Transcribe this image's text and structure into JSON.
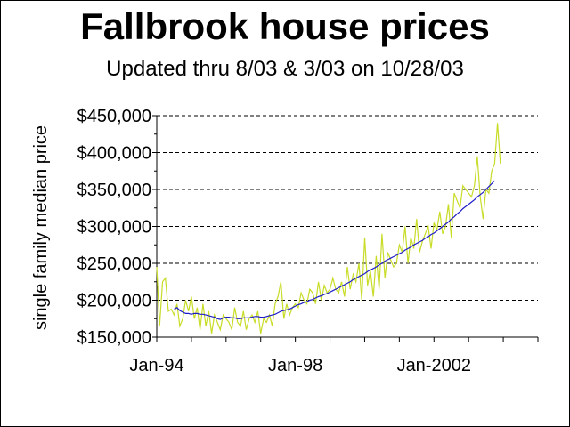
{
  "chart_data": {
    "type": "line",
    "title": "Fallbrook house prices",
    "subtitle": "Updated thru 8/03 & 3/03 on 10/28/03",
    "ylabel": "single family median price",
    "xlabel": "",
    "ylim": [
      150000,
      450000
    ],
    "yticks": [
      150000,
      200000,
      250000,
      300000,
      350000,
      400000,
      450000
    ],
    "ytick_labels": [
      "$150,000",
      "$200,000",
      "$250,000",
      "$300,000",
      "$350,000",
      "$400,000",
      "$450,000"
    ],
    "xticks": [
      {
        "label": "Jan-94",
        "month_index": 0
      },
      {
        "label": "Jan-98",
        "month_index": 48
      },
      {
        "label": "Jan-2002",
        "month_index": 96
      }
    ],
    "x_start": "Jan-94",
    "x_end": "Dec-2004",
    "grid": "horizontal dashed",
    "series": [
      {
        "color": "#c8dc28",
        "values": [
          245000,
          165000,
          225000,
          230000,
          185000,
          188000,
          180000,
          195000,
          165000,
          175000,
          200000,
          185000,
          205000,
          175000,
          190000,
          160000,
          195000,
          165000,
          185000,
          155000,
          180000,
          170000,
          160000,
          180000,
          175000,
          170000,
          160000,
          190000,
          170000,
          165000,
          185000,
          160000,
          175000,
          180000,
          170000,
          185000,
          155000,
          175000,
          170000,
          180000,
          165000,
          195000,
          205000,
          225000,
          175000,
          195000,
          180000,
          190000,
          195000,
          190000,
          210000,
          200000,
          195000,
          215000,
          210000,
          195000,
          225000,
          200000,
          220000,
          210000,
          215000,
          230000,
          215000,
          210000,
          225000,
          205000,
          245000,
          215000,
          235000,
          225000,
          250000,
          200000,
          285000,
          220000,
          240000,
          205000,
          260000,
          215000,
          290000,
          230000,
          265000,
          255000,
          245000,
          250000,
          275000,
          265000,
          300000,
          250000,
          285000,
          270000,
          310000,
          265000,
          280000,
          290000,
          300000,
          270000,
          305000,
          295000,
          320000,
          290000,
          300000,
          330000,
          285000,
          345000,
          335000,
          325000,
          355000,
          350000,
          345000,
          340000,
          355000,
          395000,
          340000,
          310000,
          350000,
          345000,
          375000,
          385000,
          440000,
          385000
        ]
      },
      {
        "color": "#1e1ec8",
        "values": [
          null,
          null,
          null,
          null,
          null,
          null,
          188000,
          190000,
          186000,
          184000,
          182000,
          182000,
          181000,
          182000,
          182000,
          181000,
          181000,
          180000,
          179000,
          178000,
          177000,
          175000,
          174000,
          176000,
          177000,
          177000,
          176000,
          176000,
          175000,
          175000,
          176000,
          176000,
          176000,
          177000,
          178000,
          178000,
          177000,
          177000,
          178000,
          179000,
          180000,
          181000,
          183000,
          185000,
          186000,
          187000,
          188000,
          190000,
          192000,
          194000,
          195000,
          197000,
          198000,
          200000,
          201000,
          203000,
          205000,
          206000,
          208000,
          209000,
          211000,
          213000,
          215000,
          217000,
          219000,
          221000,
          223000,
          225000,
          228000,
          230000,
          232000,
          234000,
          236000,
          239000,
          241000,
          243000,
          245000,
          248000,
          250000,
          253000,
          255000,
          257000,
          259000,
          261000,
          263000,
          265000,
          268000,
          270000,
          272000,
          275000,
          277000,
          279000,
          281000,
          284000,
          286000,
          289000,
          291000,
          294000,
          297000,
          300000,
          303000,
          306000,
          310000,
          313000,
          317000,
          320000,
          324000,
          327000,
          330000,
          333000,
          336000,
          340000,
          343000,
          346000,
          350000,
          354000,
          358000,
          362000,
          null,
          null
        ]
      }
    ]
  }
}
